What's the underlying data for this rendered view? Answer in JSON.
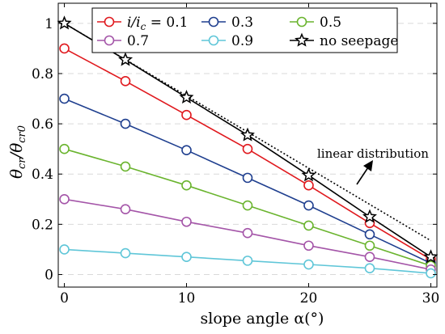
{
  "chart_data": {
    "type": "line",
    "xlabel": "slope angle α(°)",
    "ylabel": "θcr/θcr0",
    "xlim": [
      -0.5,
      30.5
    ],
    "ylim": [
      -0.05,
      1.08
    ],
    "xticks": [
      "0",
      "10",
      "20",
      "30"
    ],
    "yticks": [
      "0",
      "0.2",
      "0.4",
      "0.6",
      "0.8",
      "1"
    ],
    "grid": "y dashed",
    "legend_position": "top",
    "x": [
      0,
      5,
      10,
      15,
      20,
      25,
      30
    ],
    "series": [
      {
        "name": "i/ic = 0.1",
        "label_prefix": "i/i",
        "label_sub": "c",
        "label_suffix": " = 0.1",
        "color": "#e0191e",
        "marker": "circle",
        "values": [
          0.9,
          0.77,
          0.635,
          0.5,
          0.355,
          0.205,
          0.06
        ]
      },
      {
        "name": "0.3",
        "color": "#1f3f8f",
        "marker": "circle",
        "values": [
          0.7,
          0.6,
          0.495,
          0.385,
          0.275,
          0.16,
          0.045
        ]
      },
      {
        "name": "0.5",
        "color": "#6ab42e",
        "marker": "circle",
        "values": [
          0.5,
          0.43,
          0.355,
          0.275,
          0.195,
          0.115,
          0.035
        ]
      },
      {
        "name": "0.7",
        "color": "#a455a8",
        "marker": "circle",
        "values": [
          0.3,
          0.26,
          0.21,
          0.165,
          0.115,
          0.07,
          0.02
        ]
      },
      {
        "name": "0.9",
        "color": "#5fc6d8",
        "marker": "circle",
        "values": [
          0.1,
          0.085,
          0.07,
          0.055,
          0.04,
          0.025,
          0.005
        ]
      },
      {
        "name": "no seepage",
        "color": "#000000",
        "marker": "star",
        "values": [
          1.0,
          0.855,
          0.705,
          0.555,
          0.395,
          0.23,
          0.07
        ]
      }
    ],
    "reference_line": {
      "label": "linear distribution",
      "style": "dotted",
      "color": "#000000",
      "x": [
        0,
        30
      ],
      "y": [
        1.0,
        0.135
      ]
    },
    "annotations": [
      {
        "text": "linear distribution",
        "arrow": true
      }
    ]
  }
}
